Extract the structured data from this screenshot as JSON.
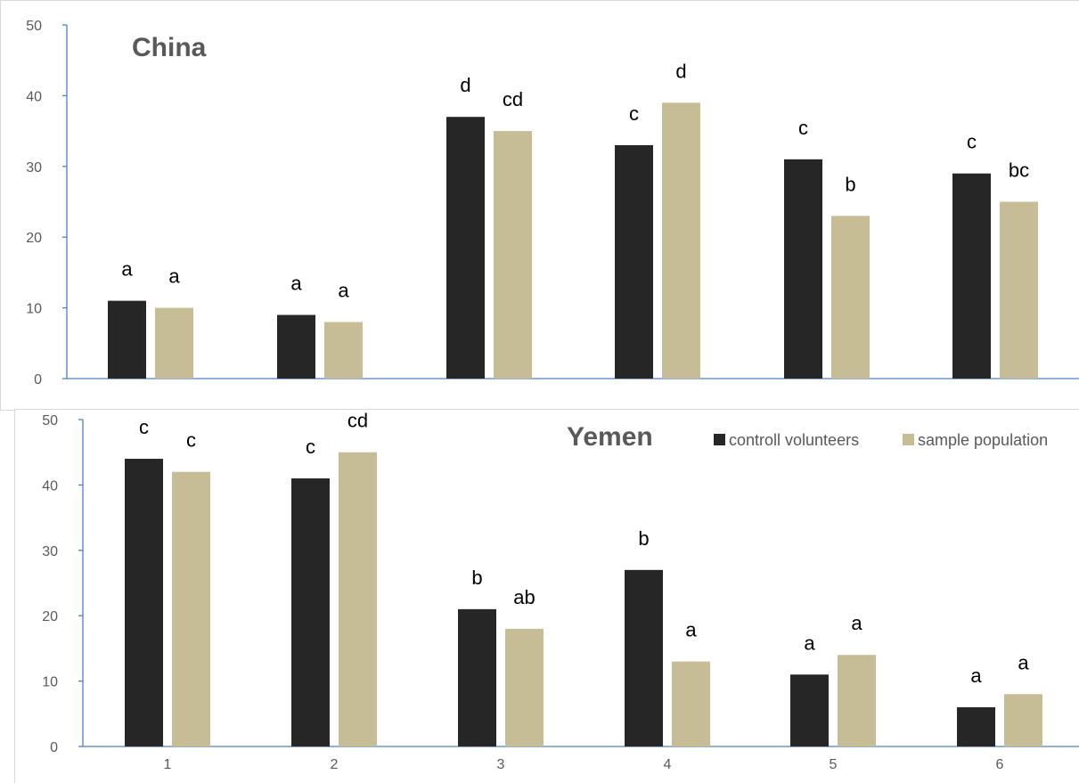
{
  "chart_data": [
    {
      "type": "bar",
      "title": "China",
      "categories": [
        "1",
        "2",
        "3",
        "4",
        "5",
        "6"
      ],
      "series": [
        {
          "name": "controll volunteers",
          "color": "#262626",
          "values": [
            11,
            9,
            37,
            33,
            31,
            29
          ],
          "labels": [
            "a",
            "a",
            "d",
            "c",
            "c",
            "c"
          ]
        },
        {
          "name": "sample population",
          "color": "#c6bc96",
          "values": [
            10,
            8,
            35,
            39,
            23,
            25
          ],
          "labels": [
            "a",
            "a",
            "cd",
            "d",
            "b",
            "bc"
          ]
        }
      ],
      "ylim": [
        0,
        50
      ],
      "yticks": [
        0,
        10,
        20,
        30,
        40,
        50
      ],
      "show_x_tick_labels": false,
      "show_legend": false
    },
    {
      "type": "bar",
      "title": "Yemen",
      "categories": [
        "1",
        "2",
        "3",
        "4",
        "5",
        "6"
      ],
      "series": [
        {
          "name": "controll volunteers",
          "color": "#262626",
          "values": [
            44,
            41,
            21,
            27,
            11,
            6
          ],
          "labels": [
            "c",
            "c",
            "b",
            "b",
            "a",
            "a"
          ]
        },
        {
          "name": "sample population",
          "color": "#c6bc96",
          "values": [
            42,
            45,
            18,
            13,
            14,
            8
          ],
          "labels": [
            "c",
            "cd",
            "ab",
            "a",
            "a",
            "a"
          ]
        }
      ],
      "ylim": [
        0,
        50
      ],
      "yticks": [
        0,
        10,
        20,
        30,
        40,
        50
      ],
      "show_x_tick_labels": true,
      "show_legend": true,
      "legend_position": "top-right"
    }
  ]
}
